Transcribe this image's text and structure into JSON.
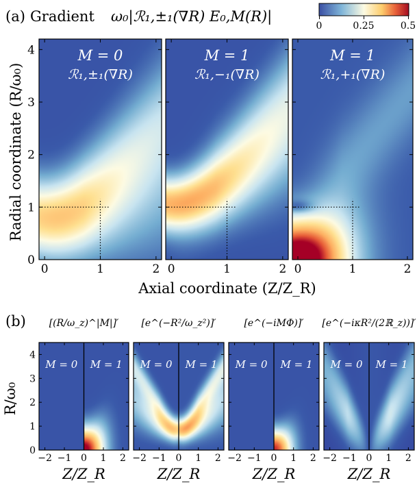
{
  "chart_data": [
    {
      "type": "heatmap",
      "panel_tag": "(a)",
      "title_prefix": "Gradient",
      "title_math": "ω₀|ℛ₁,±₁(∇R) E₀,M(R)|",
      "colorbar": {
        "ticks": [
          "0",
          "0.25",
          "0.5"
        ],
        "range": [
          0,
          0.5
        ],
        "colormap": "RdYlBu_r"
      },
      "xlabel": "Axial coordinate (Z/Z_R)",
      "ylabel": "Radial coordinate (R/ω₀)",
      "xlim": [
        -0.1,
        2.1
      ],
      "ylim": [
        0,
        4.2
      ],
      "xticks": [
        "0",
        "1",
        "2"
      ],
      "yticks": [
        "0",
        "1",
        "2",
        "3",
        "4"
      ],
      "reference_point": {
        "x": 1,
        "y": 1
      },
      "panels": [
        {
          "M_label": "M = 0",
          "op_label": "ℛ₁,±₁(∇R)",
          "peak_z": 0,
          "peak_r": 0.75,
          "peak_value": 0.3
        },
        {
          "M_label": "M = 1",
          "op_label": "ℛ₁,−₁(∇R)",
          "peak_z": 0.1,
          "peak_r": 1.05,
          "peak_value": 0.32
        },
        {
          "M_label": "M = 1",
          "op_label": "ℛ₁,+₁(∇R)",
          "peak_z": 0,
          "peak_r": 0.2,
          "peak_value": 0.5
        }
      ]
    },
    {
      "type": "heatmap",
      "panel_tag": "(b)",
      "xlabel": "Z/Z_R",
      "ylabel": "R/ω₀",
      "xlim": [
        -2.3,
        2.3
      ],
      "ylim": [
        0,
        4.5
      ],
      "xticks": [
        "−2",
        "−1",
        "0",
        "1",
        "2"
      ],
      "yticks": [
        "0",
        "1",
        "2",
        "3",
        "4"
      ],
      "left_label": "M = 0",
      "right_label": "M = 1",
      "panels": [
        {
          "factor": "[(R/ω_z)^|M|]′"
        },
        {
          "factor": "[e^(−R²/ω_z²)]′"
        },
        {
          "factor": "[e^(−iMΦ)]′"
        },
        {
          "factor": "[e^(−iκR²/(2ℝ_z))]′"
        }
      ]
    }
  ]
}
